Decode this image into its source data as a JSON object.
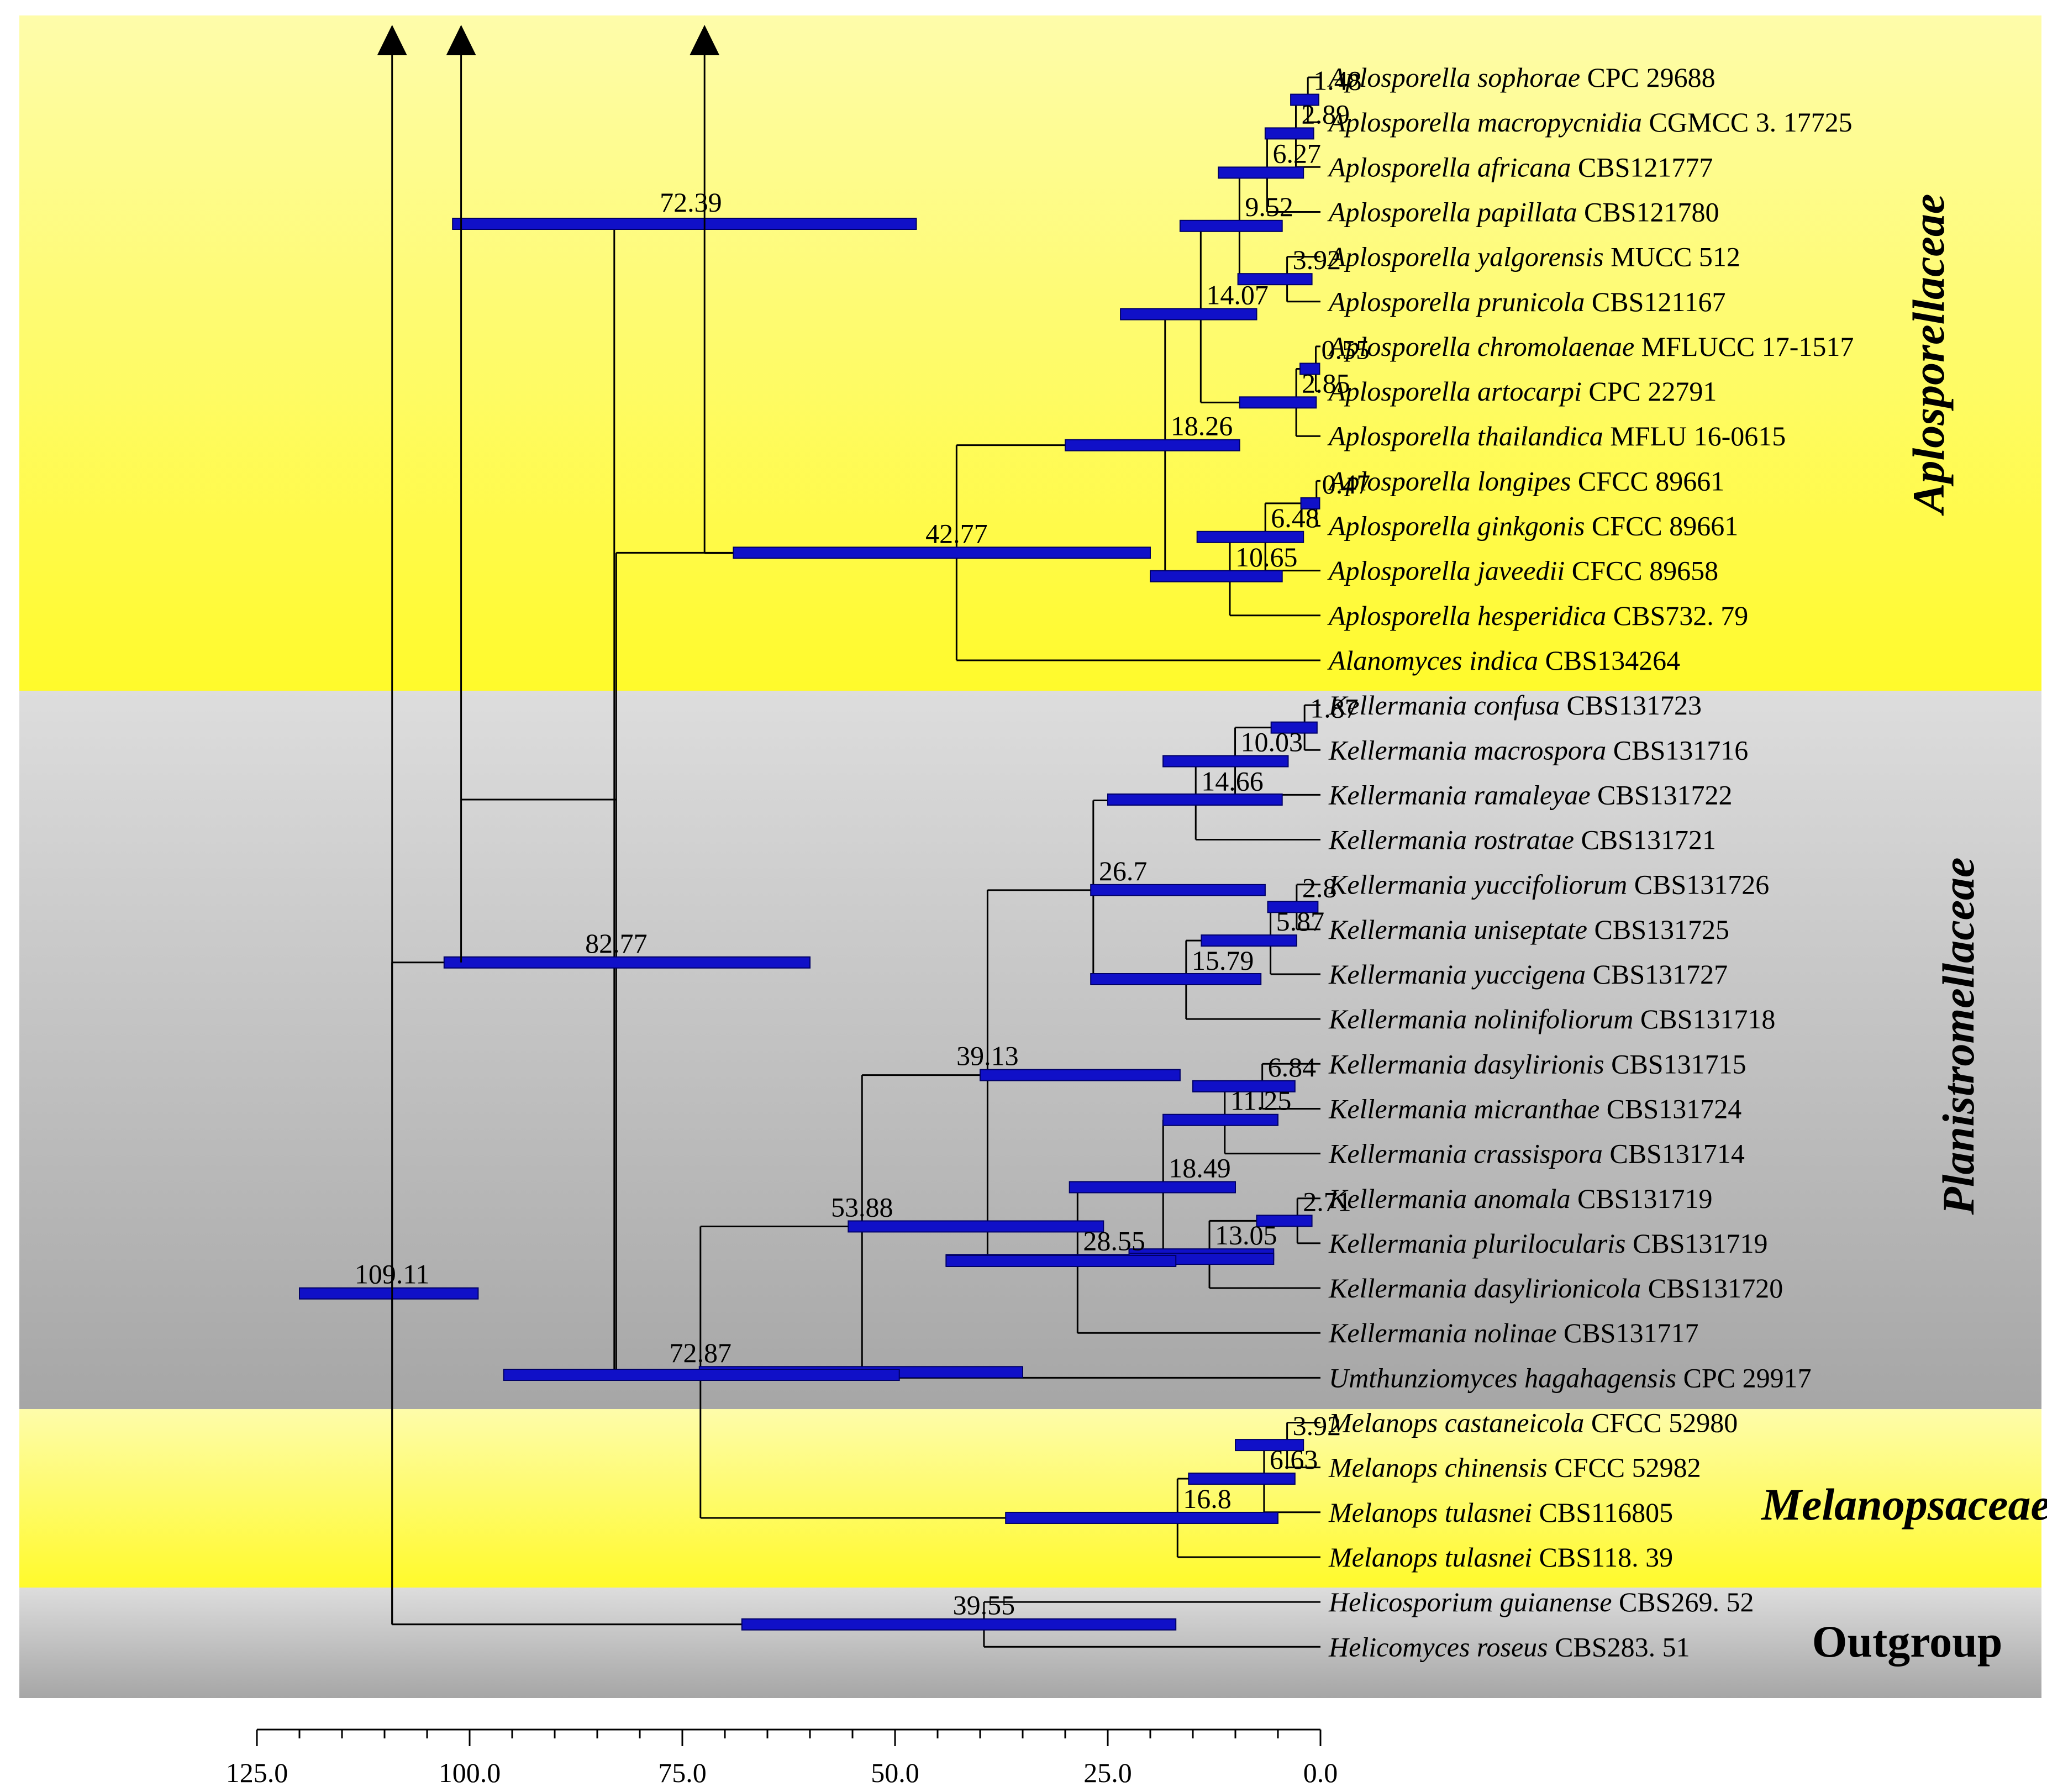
{
  "figure": {
    "type": "time-calibrated phylogenetic tree",
    "axis_unit": "Mya"
  },
  "colors": {
    "yellow_top": "#fefcaa",
    "yellow_bottom": "#fffa2b",
    "gray_top": "#dddddd",
    "gray_bottom": "#a6a6a6",
    "bar": "#1010c8",
    "bar_edge": "#000066",
    "line": "#000000"
  },
  "families": [
    {
      "id": "aplosporellaceae",
      "label": "Aplosporellaceae",
      "style": "italic",
      "band": "yellow"
    },
    {
      "id": "planistromellaceae",
      "label": "Planistromellaceae",
      "style": "italic",
      "band": "gray"
    },
    {
      "id": "melanopsaceae",
      "label": "Melanopsaceae",
      "style": "italic",
      "band": "yellow"
    },
    {
      "id": "outgroup",
      "label": "Outgroup",
      "style": "roman",
      "band": "gray"
    }
  ],
  "taxa": [
    {
      "genus": "Aplosporella sophorae",
      "strain": "CPC 29688"
    },
    {
      "genus": "Aplosporella macropycnidia",
      "strain": "CGMCC 3. 17725"
    },
    {
      "genus": "Aplosporella africana",
      "strain": "CBS121777"
    },
    {
      "genus": "Aplosporella papillata",
      "strain": "CBS121780"
    },
    {
      "genus": "Aplosporella yalgorensis",
      "strain": "MUCC 512"
    },
    {
      "genus": "Aplosporella prunicola",
      "strain": "CBS121167"
    },
    {
      "genus": "Aplosporella chromolaenae",
      "strain": "MFLUCC 17-1517"
    },
    {
      "genus": "Aplosporella artocarpi",
      "strain": "CPC 22791"
    },
    {
      "genus": "Aplosporella thailandica",
      "strain": "MFLU 16-0615"
    },
    {
      "genus": "Aplosporella longipes",
      "strain": "CFCC 89661"
    },
    {
      "genus": "Aplosporella ginkgonis",
      "strain": "CFCC 89661"
    },
    {
      "genus": "Aplosporella javeedii",
      "strain": "CFCC 89658"
    },
    {
      "genus": "Aplosporella hesperidica",
      "strain": "CBS732. 79"
    },
    {
      "genus": "Alanomyces indica",
      "strain": "CBS134264"
    },
    {
      "genus": "Kellermania confusa",
      "strain": "CBS131723"
    },
    {
      "genus": "Kellermania macrospora",
      "strain": "CBS131716"
    },
    {
      "genus": "Kellermania ramaleyae",
      "strain": "CBS131722"
    },
    {
      "genus": "Kellermania rostratae",
      "strain": "CBS131721"
    },
    {
      "genus": "Kellermania yuccifoliorum",
      "strain": "CBS131726"
    },
    {
      "genus": "Kellermania uniseptate",
      "strain": "CBS131725"
    },
    {
      "genus": "Kellermania yuccigena",
      "strain": "CBS131727"
    },
    {
      "genus": "Kellermania nolinifoliorum",
      "strain": "CBS131718"
    },
    {
      "genus": "Kellermania dasylirionis",
      "strain": "CBS131715"
    },
    {
      "genus": "Kellermania micranthae",
      "strain": "CBS131724"
    },
    {
      "genus": "Kellermania crassispora",
      "strain": "CBS131714"
    },
    {
      "genus": "Kellermania anomala",
      "strain": "CBS131719"
    },
    {
      "genus": "Kellermania plurilocularis",
      "strain": "CBS131719"
    },
    {
      "genus": "Kellermania dasylirionicola",
      "strain": "CBS131720"
    },
    {
      "genus": "Kellermania nolinae",
      "strain": "CBS131717"
    },
    {
      "genus": "Umthunziomyces hagahagensis",
      "strain": "CPC 29917"
    },
    {
      "genus": "Melanops castaneicola",
      "strain": "CFCC 52980"
    },
    {
      "genus": "Melanops chinensis",
      "strain": "CFCC 52982"
    },
    {
      "genus": "Melanops tulasnei",
      "strain": "CBS116805"
    },
    {
      "genus": "Melanops tulasnei",
      "strain": "CBS118. 39"
    },
    {
      "genus": "Helicosporium guianense",
      "strain": "CBS269. 52"
    },
    {
      "genus": "Helicomyces roseus",
      "strain": "CBS283. 51"
    }
  ],
  "nodes": [
    {
      "id": "n1",
      "age": 1.48,
      "label": "1.48",
      "hpd": [
        0.2,
        3.5
      ],
      "children": [
        "t0",
        "t1"
      ]
    },
    {
      "id": "n2",
      "age": 2.89,
      "label": "2.89",
      "hpd": [
        0.8,
        6.5
      ],
      "children": [
        "n1",
        "t2"
      ]
    },
    {
      "id": "n3",
      "age": 6.27,
      "label": "6.27",
      "hpd": [
        2.0,
        12.0
      ],
      "children": [
        "n2",
        "t3"
      ]
    },
    {
      "id": "n4",
      "age": 3.92,
      "label": "3.92",
      "hpd": [
        1.0,
        9.7
      ],
      "children": [
        "t4",
        "t5"
      ]
    },
    {
      "id": "n5",
      "age": 9.52,
      "label": "9.52",
      "hpd": [
        4.5,
        16.5
      ],
      "children": [
        "n3",
        "n4"
      ]
    },
    {
      "id": "n6",
      "age": 0.55,
      "label": "0.55",
      "hpd": [
        0.1,
        2.4
      ],
      "children": [
        "t6",
        "t7"
      ]
    },
    {
      "id": "n7",
      "age": 2.85,
      "label": "2.85",
      "hpd": [
        0.5,
        9.5
      ],
      "children": [
        "n6",
        "t8"
      ]
    },
    {
      "id": "n8",
      "age": 14.07,
      "label": "14.07",
      "hpd": [
        7.5,
        23.5
      ],
      "children": [
        "n5",
        "n7"
      ]
    },
    {
      "id": "n9",
      "age": 0.47,
      "label": "0.47",
      "hpd": [
        0.1,
        2.3
      ],
      "children": [
        "t9",
        "t10"
      ]
    },
    {
      "id": "n10",
      "age": 6.48,
      "label": "6.48",
      "hpd": [
        2.0,
        14.5
      ],
      "children": [
        "n9",
        "t11"
      ]
    },
    {
      "id": "n11",
      "age": 10.65,
      "label": "10.65",
      "hpd": [
        4.5,
        20.0
      ],
      "children": [
        "n10",
        "t12"
      ]
    },
    {
      "id": "n12",
      "age": 18.26,
      "label": "18.26",
      "hpd": [
        9.5,
        30.0
      ],
      "children": [
        "n8",
        "n11"
      ]
    },
    {
      "id": "n13",
      "age": 42.77,
      "label": "42.77",
      "hpd": [
        20.0,
        69.0
      ],
      "children": [
        "n12",
        "t13"
      ]
    },
    {
      "id": "n14",
      "age": 1.87,
      "label": "1.87",
      "hpd": [
        0.4,
        5.8
      ],
      "children": [
        "t14",
        "t15"
      ]
    },
    {
      "id": "n15",
      "age": 10.03,
      "label": "10.03",
      "hpd": [
        3.8,
        18.5
      ],
      "children": [
        "n14",
        "t16"
      ]
    },
    {
      "id": "n16",
      "age": 14.66,
      "label": "14.66",
      "hpd": [
        0,
        0
      ],
      "children": [
        "n15",
        "t17"
      ]
    },
    {
      "id": "n17",
      "age": 2.8,
      "label": "2.8",
      "hpd": [
        0.3,
        6.2
      ],
      "children": [
        "t18",
        "t19"
      ]
    },
    {
      "id": "n18",
      "age": 5.87,
      "label": "5.87",
      "hpd": [
        2.8,
        14.0
      ],
      "children": [
        "n17",
        "t20"
      ]
    },
    {
      "id": "n19",
      "age": 15.79,
      "label": "15.79",
      "hpd": [
        0,
        0
      ],
      "children": [
        "n18",
        "t21"
      ]
    },
    {
      "id": "n20",
      "age": 26.7,
      "label": "26.7",
      "hpd": [
        6.5,
        27.0
      ],
      "children": [
        "n16",
        "n19"
      ]
    },
    {
      "id": "n21",
      "age": 6.84,
      "label": "6.84",
      "hpd": [
        3.0,
        15.0
      ],
      "children": [
        "t22",
        "t23"
      ]
    },
    {
      "id": "n22",
      "age": 11.25,
      "label": "11.25",
      "hpd": [
        5.0,
        18.5
      ],
      "children": [
        "n21",
        "t24"
      ]
    },
    {
      "id": "n23",
      "age": 2.71,
      "label": "2.71",
      "hpd": [
        1.0,
        7.5
      ],
      "children": [
        "t25",
        "t26"
      ]
    },
    {
      "id": "n24",
      "age": 13.05,
      "label": "13.05",
      "hpd": [
        5.5,
        22.5
      ],
      "children": [
        "n23",
        "t27"
      ]
    },
    {
      "id": "n25",
      "age": 18.49,
      "label": "18.49",
      "hpd": [
        10.0,
        29.5
      ],
      "children": [
        "n22",
        "n24"
      ]
    },
    {
      "id": "n26",
      "age": 28.55,
      "label": "28.55",
      "hpd": [
        17.0,
        44.0
      ],
      "children": [
        "n25",
        "t28"
      ]
    },
    {
      "id": "n27",
      "age": 39.13,
      "label": "39.13",
      "hpd": [
        16.5,
        40.0
      ],
      "children": [
        "n20",
        "n26"
      ]
    },
    {
      "id": "n28",
      "age": 53.88,
      "label": "53.88",
      "hpd": [
        25.5,
        55.5
      ],
      "children": [
        "n27",
        "t29"
      ]
    },
    {
      "id": "n29",
      "age": 3.92,
      "label": "3.92",
      "hpd": [
        2.0,
        10.0
      ],
      "children": [
        "t30",
        "t31"
      ]
    },
    {
      "id": "n30",
      "age": 6.63,
      "label": "6.63",
      "hpd": [
        3.0,
        15.5
      ],
      "children": [
        "n29",
        "t32"
      ]
    },
    {
      "id": "n31",
      "age": 16.8,
      "label": "16.8",
      "hpd": [
        5.0,
        37.0
      ],
      "children": [
        "n30",
        "t33"
      ]
    },
    {
      "id": "n32",
      "age": 72.87,
      "label": "72.87",
      "hpd": [
        35.0,
        73.0
      ],
      "children": [
        "n28",
        "n31"
      ]
    },
    {
      "id": "n33",
      "age": 82.77,
      "label": "82.77",
      "hpd": [
        60.0,
        103.0
      ],
      "children": [
        "n13",
        "n32"
      ]
    },
    {
      "id": "n34",
      "age": 39.55,
      "label": "39.55",
      "hpd": [
        17.0,
        68.0
      ],
      "children": [
        "t34",
        "t35"
      ]
    },
    {
      "id": "n35",
      "age": 109.11,
      "label": "109.11",
      "hpd": [
        99.0,
        120.0
      ],
      "children": [
        "n33",
        "n34"
      ]
    }
  ],
  "extra_bars": [
    {
      "id": "bar-72-39",
      "label": "72.39",
      "age": 83.0,
      "hpd": [
        47.5,
        102.0
      ],
      "label_age": 74.0
    },
    {
      "id": "bar-14-66-upper",
      "age": 29.5,
      "hpd": [
        25.0,
        4.5
      ]
    },
    {
      "id": "bar-15-79-lower",
      "age": 29.5,
      "hpd": [
        27.0,
        7.0
      ]
    },
    {
      "id": "bar-13-05-lower",
      "age": 40.0,
      "hpd": [
        5.5,
        22.5
      ]
    },
    {
      "id": "bar-28-55-lower",
      "age": 40.0,
      "hpd": [
        44.0,
        17.0
      ]
    },
    {
      "id": "bar-72-87-lower",
      "age": 54.0,
      "hpd": [
        49.5,
        96.0
      ]
    }
  ],
  "axis": {
    "min": 0.0,
    "max": 125.0,
    "ticks": [
      "125.0",
      "100.0",
      "75.0",
      "50.0",
      "25.0",
      "0.0"
    ],
    "tick_values": [
      125,
      100,
      75,
      50,
      25,
      0
    ],
    "minor_step": 5
  },
  "arrows": [
    {
      "age": 109.11
    },
    {
      "age": 101.0
    },
    {
      "age": 72.39
    }
  ]
}
